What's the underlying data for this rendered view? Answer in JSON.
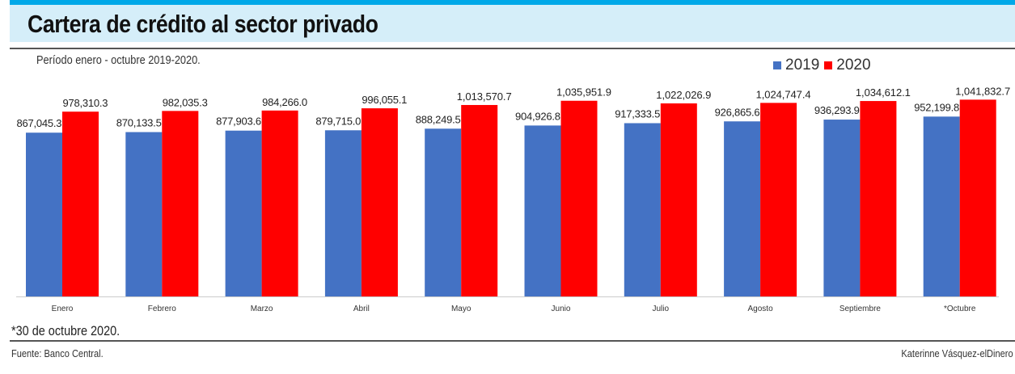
{
  "header": {
    "title": "Cartera de crédito al sector privado"
  },
  "subtitle": "Período enero - octubre 2019-2020.",
  "footnote": "*30 de octubre 2020.",
  "source": "Fuente: Banco Central.",
  "credit": "Katerinne Vásquez-elDinero",
  "chart_data": {
    "type": "bar",
    "title": "Cartera de crédito al sector privado",
    "categories": [
      "Enero",
      "Febrero",
      "Marzo",
      "Abril",
      "Mayo",
      "Junio",
      "Julio",
      "Agosto",
      "Septiembre",
      "*Octubre"
    ],
    "series": [
      {
        "name": "2019",
        "color": "#4472c4",
        "values": [
          867045.3,
          870133.5,
          877903.6,
          879715.0,
          888249.5,
          904926.8,
          917333.5,
          926865.6,
          936293.9,
          952199.8
        ],
        "labels": [
          "867,045.3",
          "870,133.5",
          "877,903.6",
          "879,715.0",
          "888,249.5",
          "904,926.8",
          "917,333.5",
          "926,865.6",
          "936,293.9",
          "952,199.8"
        ]
      },
      {
        "name": "2020",
        "color": "#ff0000",
        "values": [
          978310.3,
          982035.3,
          984266.0,
          996055.1,
          1013570.7,
          1035951.9,
          1022026.9,
          1024747.4,
          1034612.1,
          1041832.7
        ],
        "labels": [
          "978,310.3",
          "982,035.3",
          "984,266.0",
          "996,055.1",
          "1,013,570.7",
          "1,035,951.9",
          "1,022,026.9",
          "1,024,747.4",
          "1,034,612.1",
          "1,041,832.7"
        ]
      }
    ],
    "ylim": [
      0,
      1300000
    ],
    "legend": "top-right",
    "grid": false
  }
}
